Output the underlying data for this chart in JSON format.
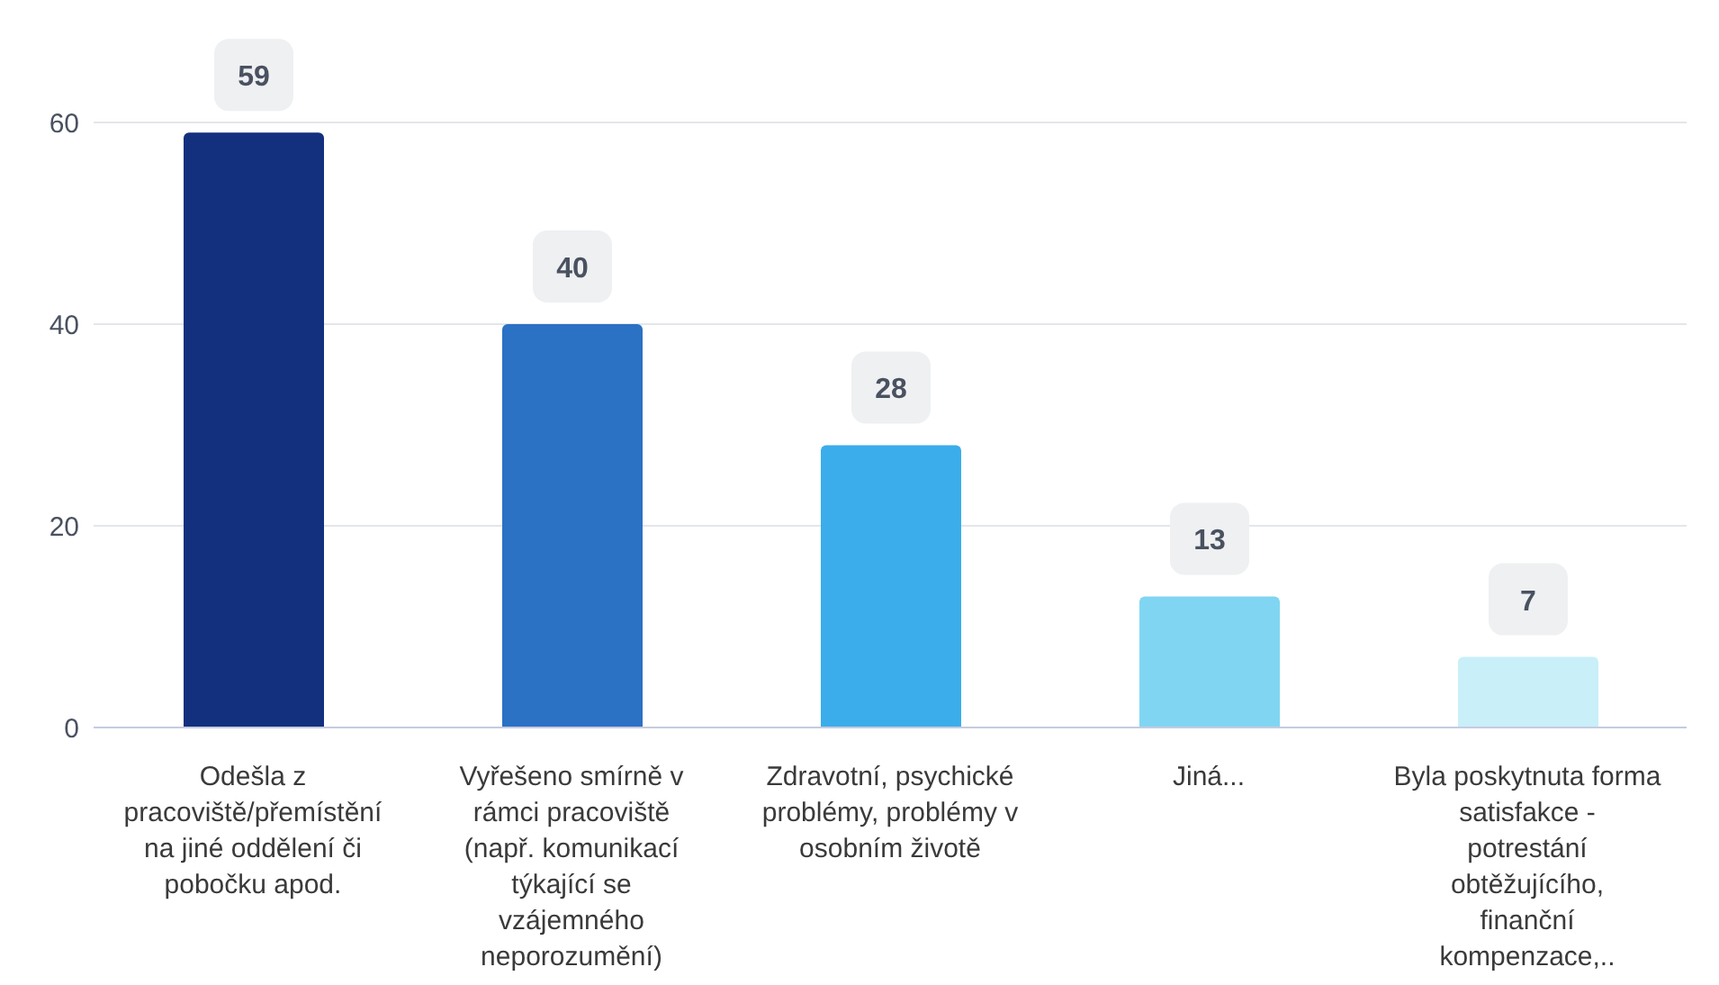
{
  "chart_data": {
    "type": "bar",
    "categories": [
      "Odešla z pracoviště/přemístění na jiné oddělení či pobočku apod.",
      "Vyřešeno smírně v rámci pracoviště (např. komunikací týkající se vzájemného neporozumění)",
      "Zdravotní, psychické problémy, problémy v osobním životě",
      "Jiná...",
      "Byla poskytnuta forma satisfakce - potrestání obtěžujícího, finanční kompenzace,.."
    ],
    "values": [
      59,
      40,
      28,
      13,
      7
    ],
    "colors": [
      "#13307f",
      "#2b71c4",
      "#3badea",
      "#80d6f2",
      "#c9eff9"
    ],
    "ylim": [
      0,
      60
    ],
    "yticks": [
      0,
      20,
      40,
      60
    ],
    "grid": "y",
    "data_labels": true,
    "legend": false
  }
}
